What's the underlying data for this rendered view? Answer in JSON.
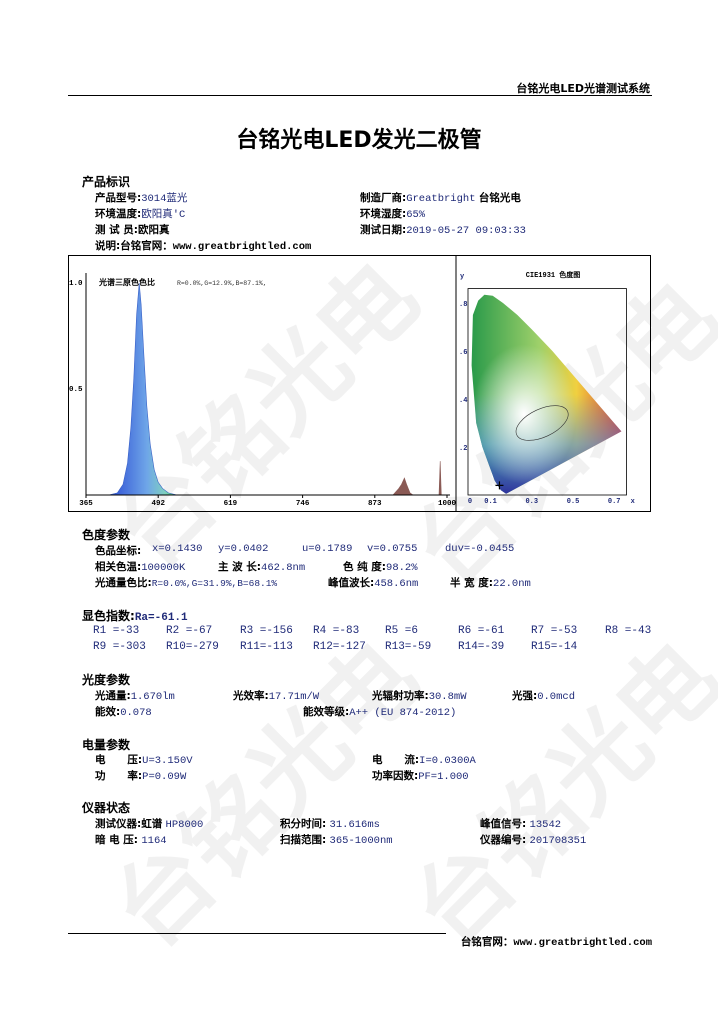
{
  "header": {
    "system_name": "台铭光电LED光谱测试系统"
  },
  "title": "台铭光电LED发光二极管",
  "watermark": "台铭光电",
  "product": {
    "section": "产品标识",
    "model_label": "产品型号:",
    "model": "3014蓝光",
    "maker_label": "制造厂商:",
    "maker": "Greatbright",
    "maker_cn": "台铭光电",
    "temp_label": "环境温度:",
    "temp": "欧阳真'C",
    "humidity_label": "环境湿度:",
    "humidity": "65%",
    "tester_label": "测 试 员:",
    "tester": "欧阳真",
    "date_label": "测试日期:",
    "date": "2019-05-27 09:03:33",
    "note_label": "说明:台铭官网：",
    "note": "www.greatbrightled.com"
  },
  "chart_data": [
    {
      "type": "area",
      "title": "光谱三原色色比",
      "subtitle": "R=0.0%,G=12.9%,B=87.1%,",
      "xlim": [
        365,
        1000
      ],
      "ylim": [
        0,
        1.0
      ],
      "x_ticks": [
        "365",
        "492",
        "619",
        "746",
        "873",
        "1000"
      ],
      "y_ticks": [
        "0.5",
        "1.0"
      ],
      "series": [
        {
          "points": [
            [
              405,
              0
            ],
            [
              420,
              0.01
            ],
            [
              430,
              0.05
            ],
            [
              438,
              0.15
            ],
            [
              444,
              0.32
            ],
            [
              449,
              0.55
            ],
            [
              454,
              0.85
            ],
            [
              458.6,
              1.0
            ],
            [
              462,
              0.9
            ],
            [
              467,
              0.65
            ],
            [
              472,
              0.42
            ],
            [
              478,
              0.24
            ],
            [
              485,
              0.12
            ],
            [
              492,
              0.06
            ],
            [
              500,
              0.03
            ],
            [
              510,
              0.01
            ],
            [
              525,
              0
            ]
          ],
          "color": "#5a8ee0"
        },
        {
          "points": [
            [
              905,
              0
            ],
            [
              915,
              0.03
            ],
            [
              920,
              0.05
            ],
            [
              925,
              0.08
            ],
            [
              929,
              0.05
            ],
            [
              935,
              0.01
            ],
            [
              940,
              0
            ]
          ],
          "color": "#8a5a55"
        },
        {
          "points": [
            [
              986,
              0
            ],
            [
              988,
              0.16
            ],
            [
              990,
              0
            ]
          ],
          "color": "#8a5a55"
        }
      ]
    },
    {
      "type": "scatter",
      "title": "CIE1931 色度图",
      "xlabel": "x",
      "ylabel": "y",
      "x_ticks": [
        "0",
        "0.1",
        "0.3",
        "0.5",
        "0.7"
      ],
      "y_ticks": [
        ".2",
        ".4",
        ".6",
        ".8"
      ],
      "point": {
        "x": 0.143,
        "y": 0.0402
      }
    }
  ],
  "chroma": {
    "section": "色度参数",
    "coord_label": "色品坐标:",
    "x": "x=0.1430",
    "y": "y=0.0402",
    "u": "u=0.1789",
    "v": "v=0.0755",
    "duv": "duv=-0.0455",
    "cct_label": "相关色温:",
    "cct": "100000K",
    "dom_label": "主 波 长:",
    "dom": "462.8nm",
    "purity_label": "色 纯 度:",
    "purity": "98.2%",
    "ratio_label": "光通量色比:",
    "ratio": "R=0.0%,G=31.9%,B=68.1%",
    "peak_label": "峰值波长:",
    "peak": "458.6nm",
    "hw_label": "半 宽 度:",
    "hw": "22.0nm"
  },
  "cri": {
    "section": "显色指数:",
    "ra": "Ra=-61.1",
    "values": [
      "R1 =-33",
      "R2 =-67",
      "R3 =-156",
      "R4 =-83",
      "R5 =6",
      "R6 =-61",
      "R7 =-53",
      "R8 =-43",
      "R9 =-303",
      "R10=-279",
      "R11=-113",
      "R12=-127",
      "R13=-59",
      "R14=-39",
      "R15=-14"
    ]
  },
  "photo": {
    "section": "光度参数",
    "flux_label": "光通量:",
    "flux": "1.670lm",
    "eff_label": "光效率:",
    "eff": "17.71m/W",
    "rad_label": "光辐射功率:",
    "rad": "30.8mW",
    "intensity_label": "光强:",
    "intensity": "0.0mcd",
    "ee_label": "能效:",
    "ee": "0.078",
    "grade_label": "能效等级:",
    "grade": "A++ (EU 874-2012)"
  },
  "elec": {
    "section": "电量参数",
    "u_label": "电      压:",
    "u": "U=3.150V",
    "i_label": "电      流:",
    "i": "I=0.0300A",
    "p_label": "功      率:",
    "p": "P=0.09W",
    "pf_label": "功率因数:",
    "pf": "PF=1.000"
  },
  "inst": {
    "section": "仪器状态",
    "dev_label": "测试仪器:虹谱",
    "dev": "HP8000",
    "int_label": "积分时间:",
    "int": "31.616ms",
    "sig_label": "峰值信号:",
    "sig": "13542",
    "dark_label": "暗 电 压:",
    "dark": "1164",
    "range_label": "扫描范围:",
    "range": "365-1000nm",
    "sn_label": "仪器编号:",
    "sn": "201708351"
  },
  "footer": {
    "label": "台铭官网：",
    "url": "www.greatbrightled.com"
  }
}
